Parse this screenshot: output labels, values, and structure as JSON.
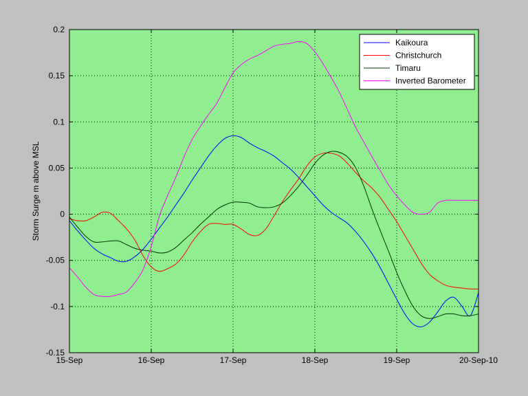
{
  "chart_data": {
    "type": "line",
    "title": "",
    "xlabel": "",
    "ylabel": "Storm Surge m above MSL",
    "x_ticks": [
      "15-Sep",
      "16-Sep",
      "17-Sep",
      "18-Sep",
      "19-Sep",
      "20-Sep-10"
    ],
    "xlim": [
      0,
      5
    ],
    "ylim": [
      -0.15,
      0.2
    ],
    "y_ticks": [
      -0.15,
      -0.1,
      -0.05,
      0,
      0.05,
      0.1,
      0.15,
      0.2
    ],
    "y_tick_labels": [
      "-0.15",
      "-0.1",
      "-0.05",
      "0",
      "0.05",
      "0.1",
      "0.15",
      "0.2"
    ],
    "grid": true,
    "legend_position": "top-right",
    "series": [
      {
        "name": "Kaikoura",
        "color": "#0000ff",
        "x": [
          0,
          0.1,
          0.2,
          0.3,
          0.4,
          0.5,
          0.6,
          0.7,
          0.8,
          0.9,
          1.0,
          1.1,
          1.2,
          1.3,
          1.4,
          1.5,
          1.6,
          1.7,
          1.8,
          1.9,
          2.0,
          2.1,
          2.2,
          2.3,
          2.4,
          2.5,
          2.6,
          2.7,
          2.8,
          2.9,
          3.0,
          3.1,
          3.2,
          3.3,
          3.4,
          3.5,
          3.6,
          3.7,
          3.8,
          3.9,
          4.0,
          4.1,
          4.2,
          4.3,
          4.4,
          4.5,
          4.6,
          4.7,
          4.8,
          4.9,
          5.0
        ],
        "values": [
          -0.007,
          -0.018,
          -0.028,
          -0.037,
          -0.043,
          -0.047,
          -0.051,
          -0.051,
          -0.046,
          -0.038,
          -0.027,
          -0.015,
          -0.003,
          0.01,
          0.023,
          0.037,
          0.05,
          0.063,
          0.074,
          0.082,
          0.085,
          0.083,
          0.077,
          0.072,
          0.068,
          0.063,
          0.056,
          0.049,
          0.04,
          0.03,
          0.02,
          0.01,
          0.002,
          -0.004,
          -0.01,
          -0.019,
          -0.03,
          -0.043,
          -0.058,
          -0.075,
          -0.092,
          -0.108,
          -0.119,
          -0.122,
          -0.117,
          -0.106,
          -0.094,
          -0.09,
          -0.1,
          -0.11,
          -0.085
        ]
      },
      {
        "name": "Christchurch",
        "color": "#ff0000",
        "x": [
          0,
          0.1,
          0.2,
          0.3,
          0.4,
          0.5,
          0.6,
          0.7,
          0.8,
          0.9,
          1.0,
          1.1,
          1.2,
          1.3,
          1.4,
          1.5,
          1.6,
          1.7,
          1.8,
          1.9,
          2.0,
          2.1,
          2.2,
          2.3,
          2.4,
          2.5,
          2.6,
          2.7,
          2.8,
          2.9,
          3.0,
          3.1,
          3.2,
          3.3,
          3.4,
          3.5,
          3.6,
          3.7,
          3.8,
          3.9,
          4.0,
          4.1,
          4.2,
          4.3,
          4.4,
          4.5,
          4.6,
          4.7,
          4.8,
          4.9,
          5.0
        ],
        "values": [
          -0.005,
          -0.007,
          -0.007,
          -0.003,
          0.002,
          0.001,
          -0.007,
          -0.016,
          -0.028,
          -0.045,
          -0.057,
          -0.062,
          -0.059,
          -0.054,
          -0.044,
          -0.03,
          -0.019,
          -0.011,
          -0.01,
          -0.011,
          -0.011,
          -0.016,
          -0.022,
          -0.023,
          -0.016,
          -0.002,
          0.013,
          0.026,
          0.038,
          0.052,
          0.062,
          0.066,
          0.066,
          0.063,
          0.055,
          0.045,
          0.036,
          0.028,
          0.018,
          0.005,
          -0.008,
          -0.023,
          -0.038,
          -0.053,
          -0.065,
          -0.072,
          -0.077,
          -0.079,
          -0.08,
          -0.081,
          -0.081
        ]
      },
      {
        "name": "Timaru",
        "color": "#003300",
        "x": [
          0,
          0.1,
          0.2,
          0.3,
          0.4,
          0.5,
          0.6,
          0.7,
          0.8,
          0.9,
          1.0,
          1.1,
          1.2,
          1.3,
          1.4,
          1.5,
          1.6,
          1.7,
          1.8,
          1.9,
          2.0,
          2.1,
          2.2,
          2.3,
          2.4,
          2.5,
          2.6,
          2.7,
          2.8,
          2.9,
          3.0,
          3.1,
          3.2,
          3.3,
          3.4,
          3.5,
          3.6,
          3.7,
          3.8,
          3.9,
          4.0,
          4.1,
          4.2,
          4.3,
          4.4,
          4.5,
          4.6,
          4.7,
          4.8,
          4.9,
          5.0
        ],
        "values": [
          -0.003,
          -0.014,
          -0.024,
          -0.03,
          -0.03,
          -0.029,
          -0.029,
          -0.033,
          -0.037,
          -0.039,
          -0.04,
          -0.042,
          -0.041,
          -0.036,
          -0.028,
          -0.02,
          -0.011,
          -0.003,
          0.005,
          0.01,
          0.013,
          0.013,
          0.012,
          0.008,
          0.007,
          0.008,
          0.012,
          0.02,
          0.03,
          0.042,
          0.055,
          0.064,
          0.068,
          0.067,
          0.062,
          0.05,
          0.03,
          0.005,
          -0.018,
          -0.04,
          -0.063,
          -0.083,
          -0.1,
          -0.11,
          -0.113,
          -0.111,
          -0.108,
          -0.108,
          -0.11,
          -0.11,
          -0.108
        ]
      },
      {
        "name": "Inverted Barometer",
        "color": "#ff00ff",
        "x": [
          0,
          0.1,
          0.2,
          0.3,
          0.4,
          0.5,
          0.6,
          0.7,
          0.8,
          0.9,
          1.0,
          1.1,
          1.2,
          1.3,
          1.4,
          1.5,
          1.6,
          1.7,
          1.8,
          1.9,
          2.0,
          2.1,
          2.2,
          2.3,
          2.4,
          2.5,
          2.6,
          2.7,
          2.8,
          2.9,
          3.0,
          3.1,
          3.2,
          3.3,
          3.4,
          3.5,
          3.6,
          3.7,
          3.8,
          3.9,
          4.0,
          4.1,
          4.2,
          4.3,
          4.4,
          4.5,
          4.6,
          4.7,
          4.8,
          4.9,
          5.0
        ],
        "values": [
          -0.058,
          -0.068,
          -0.079,
          -0.087,
          -0.089,
          -0.089,
          -0.087,
          -0.084,
          -0.074,
          -0.06,
          -0.035,
          -0.002,
          0.02,
          0.04,
          0.062,
          0.081,
          0.095,
          0.108,
          0.12,
          0.137,
          0.153,
          0.162,
          0.168,
          0.172,
          0.177,
          0.182,
          0.184,
          0.185,
          0.187,
          0.185,
          0.176,
          0.163,
          0.148,
          0.132,
          0.113,
          0.094,
          0.078,
          0.062,
          0.047,
          0.032,
          0.02,
          0.01,
          0.002,
          0.0,
          0.002,
          0.012,
          0.015,
          0.015,
          0.015,
          0.015,
          0.015
        ]
      }
    ]
  }
}
